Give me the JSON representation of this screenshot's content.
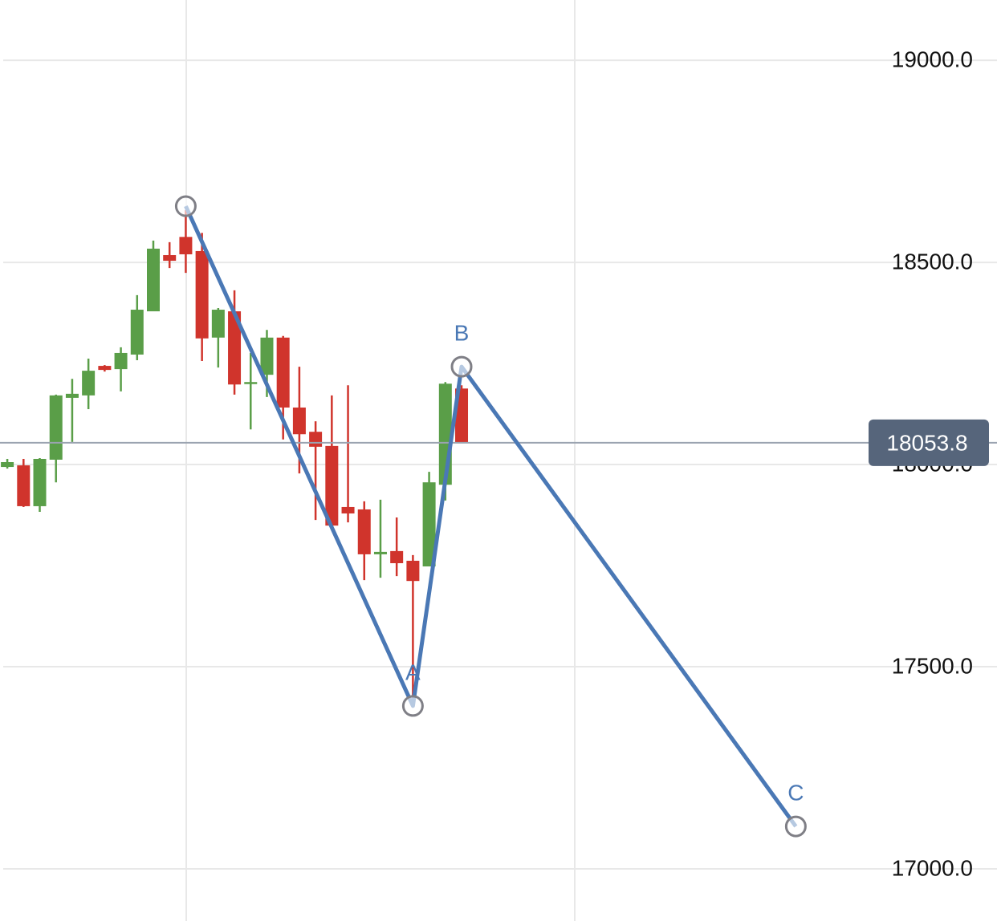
{
  "chart_data": {
    "type": "candlestick",
    "up_color": "#5a9e48",
    "down_color": "#d0342c",
    "open": [
      17994,
      17998,
      17897,
      18012,
      18165,
      18171,
      18244,
      18236,
      18272,
      18379,
      18518,
      18563,
      18528,
      18314,
      18379,
      18200,
      18222,
      18314,
      18141,
      18081,
      18046,
      17895,
      17889,
      17778,
      17786,
      17762,
      17748,
      17950,
      18188
    ],
    "high": [
      18014,
      18014,
      18016,
      18173,
      18212,
      18262,
      18246,
      18290,
      18419,
      18554,
      18550,
      18629,
      18573,
      18387,
      18431,
      18276,
      18333,
      18318,
      18242,
      18107,
      18171,
      18196,
      17909,
      17913,
      17869,
      17776,
      17982,
      18204,
      18196
    ],
    "low": [
      17990,
      17895,
      17883,
      17956,
      18056,
      18137,
      18230,
      18181,
      18258,
      18379,
      18486,
      18474,
      18256,
      18240,
      18173,
      18087,
      18167,
      18062,
      17978,
      17863,
      17845,
      17857,
      17714,
      17720,
      17724,
      17408,
      17748,
      17911,
      18054
    ],
    "close": [
      18006,
      17897,
      18014,
      18171,
      18175,
      18232,
      18234,
      18276,
      18383,
      18534,
      18504,
      18520,
      18312,
      18383,
      18198,
      18204,
      18314,
      18141,
      18075,
      18044,
      17849,
      17879,
      17778,
      17784,
      17756,
      17712,
      17956,
      18200,
      18054
    ],
    "wave": {
      "color": "#4a78b5",
      "x": [
        11,
        25,
        28,
        48.6
      ],
      "y": [
        18639,
        17403,
        18242,
        17105
      ],
      "labels": [
        null,
        "A",
        "B",
        "C"
      ]
    },
    "last_price": 18053.8,
    "xlim": [
      -0.45,
      61
    ],
    "ylim": [
      16871,
      19149
    ],
    "yticks": [
      {
        "value": 17000,
        "label": "17000.0"
      },
      {
        "value": 17500,
        "label": "17500.0"
      },
      {
        "value": 18000,
        "label": "18000.0"
      },
      {
        "value": 18500,
        "label": "18500.0"
      },
      {
        "value": 19000,
        "label": "19000.0"
      }
    ],
    "grid": true
  }
}
